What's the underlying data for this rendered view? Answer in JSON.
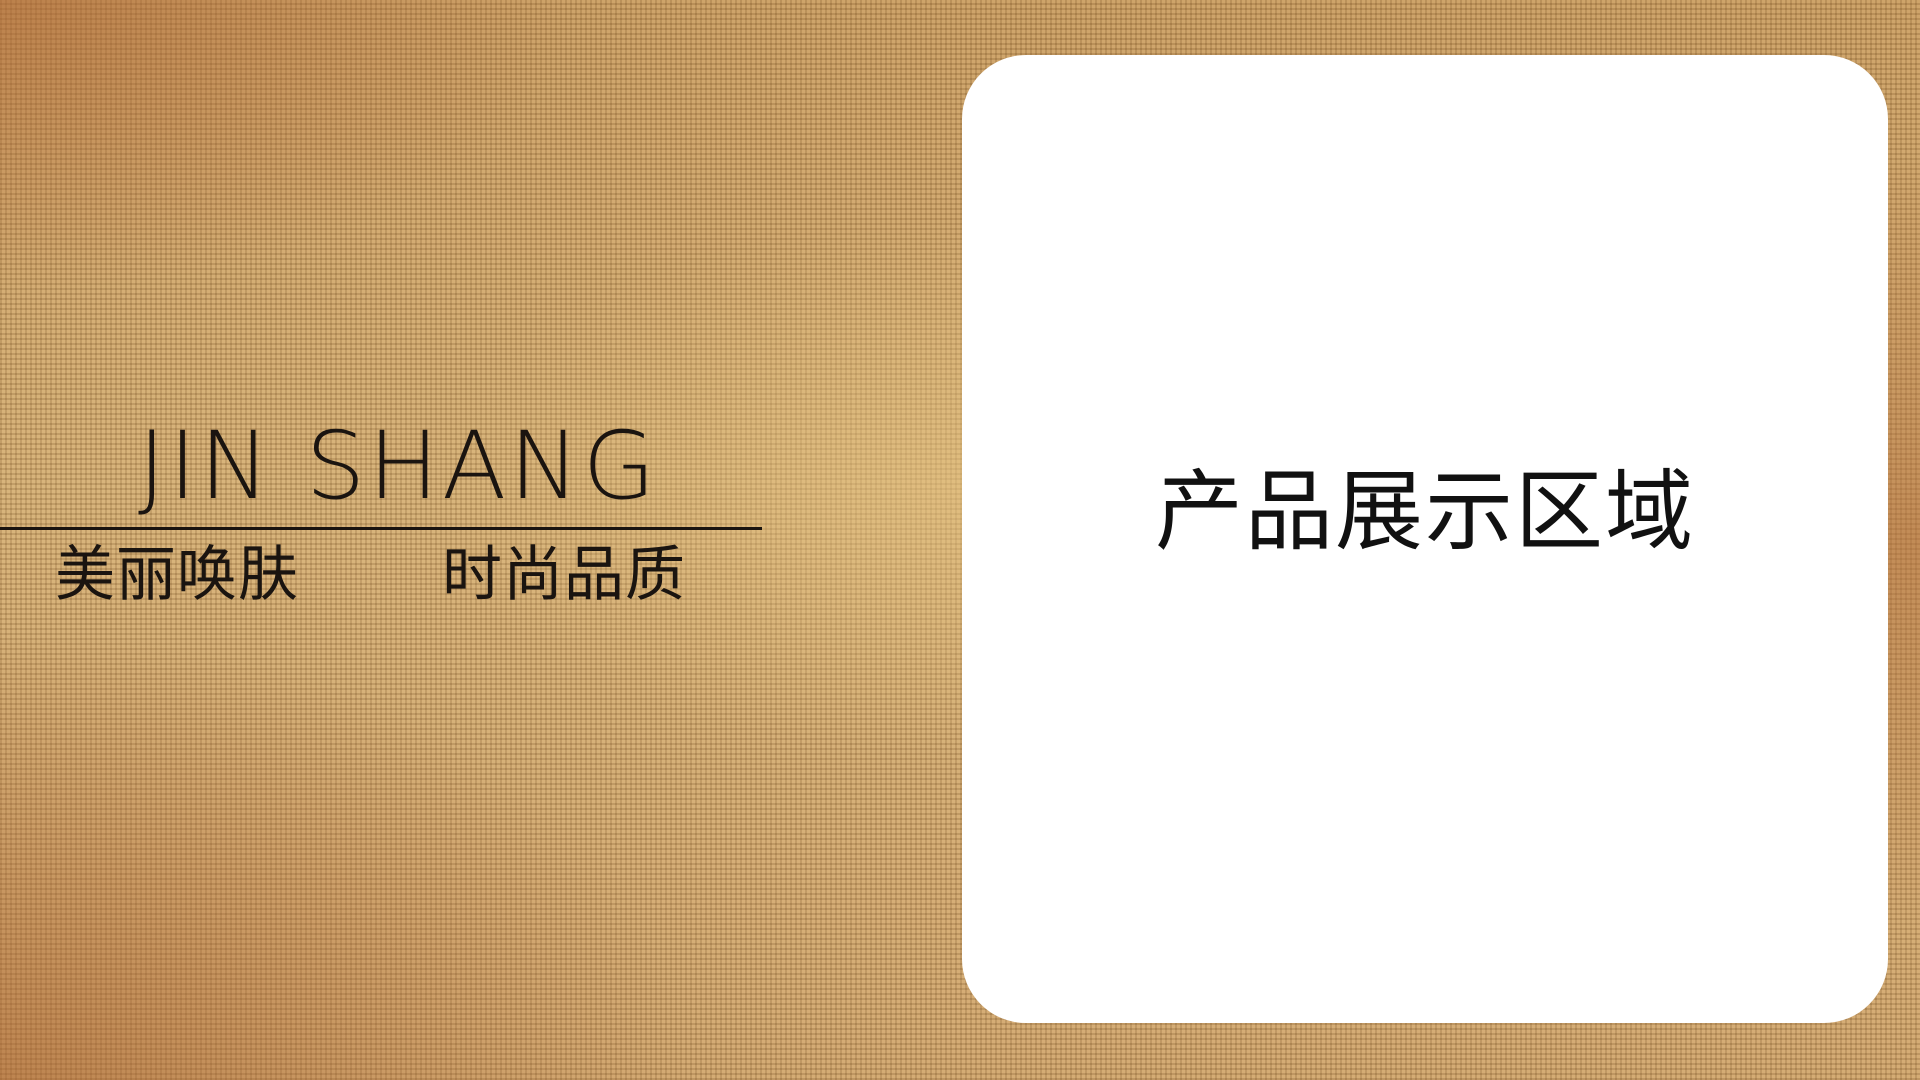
{
  "brand": {
    "logo": "JIN SHANG",
    "slogan_left": "美丽唤肤",
    "slogan_right": "时尚品质"
  },
  "product_panel": {
    "label": "产品展示区域"
  },
  "colors": {
    "background": "#c9a066",
    "text": "#1a1410",
    "panel": "#ffffff"
  }
}
